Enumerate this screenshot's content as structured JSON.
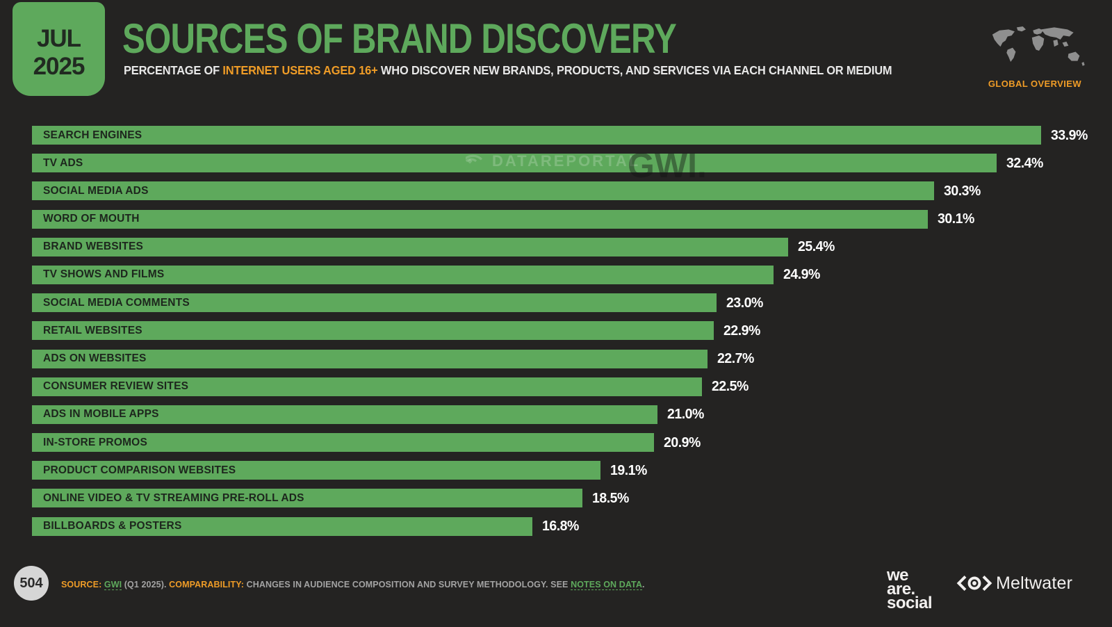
{
  "header": {
    "date_month": "JUL",
    "date_year": "2025",
    "title": "SOURCES OF BRAND DISCOVERY",
    "subtitle_prefix": "PERCENTAGE OF ",
    "subtitle_highlight": "INTERNET USERS AGED 16+",
    "subtitle_suffix": " WHO DISCOVER NEW BRANDS, PRODUCTS, AND SERVICES VIA EACH CHANNEL OR MEDIUM",
    "region_label": "GLOBAL OVERVIEW"
  },
  "watermark": {
    "datareportal": "DATAREPORTAL",
    "gwi": "GWI."
  },
  "chart_data": {
    "type": "bar",
    "orientation": "horizontal",
    "title": "Sources of Brand Discovery",
    "xlabel": "Percentage of internet users aged 16+",
    "xlim": [
      0,
      35
    ],
    "grid": false,
    "categories": [
      "SEARCH ENGINES",
      "TV ADS",
      "SOCIAL MEDIA ADS",
      "WORD OF MOUTH",
      "BRAND WEBSITES",
      "TV SHOWS AND FILMS",
      "SOCIAL MEDIA COMMENTS",
      "RETAIL WEBSITES",
      "ADS ON WEBSITES",
      "CONSUMER REVIEW SITES",
      "ADS IN MOBILE APPS",
      "IN-STORE PROMOS",
      "PRODUCT COMPARISON WEBSITES",
      "ONLINE VIDEO & TV STREAMING PRE-ROLL ADS",
      "BILLBOARDS & POSTERS"
    ],
    "values": [
      33.9,
      32.4,
      30.3,
      30.1,
      25.4,
      24.9,
      23.0,
      22.9,
      22.7,
      22.5,
      21.0,
      20.9,
      19.1,
      18.5,
      16.8
    ],
    "value_labels": [
      "33.9%",
      "32.4%",
      "30.3%",
      "30.1%",
      "25.4%",
      "24.9%",
      "23.0%",
      "22.9%",
      "22.7%",
      "22.5%",
      "21.0%",
      "20.9%",
      "19.1%",
      "18.5%",
      "16.8%"
    ],
    "bar_color": "#5ea95c",
    "label_color": "#1d261d",
    "value_color": "#ffffff"
  },
  "footer": {
    "page_number": "504",
    "source_label": "SOURCE:",
    "source_link": "GWI",
    "source_note": "(Q1 2025).",
    "comparability_label": "COMPARABILITY:",
    "comparability_text": "CHANGES IN AUDIENCE COMPOSITION AND SURVEY METHODOLOGY. SEE",
    "notes_link": "NOTES ON DATA",
    "notes_suffix": ".",
    "logos": {
      "we_are_social": [
        "we",
        "are.",
        "social"
      ],
      "meltwater": "Meltwater"
    }
  },
  "colors": {
    "background": "#242322",
    "accent_green": "#5ea95c",
    "accent_orange": "#ef9c27",
    "footnote_gray": "#a3a3a3",
    "map_gray": "#8f8f8f"
  }
}
